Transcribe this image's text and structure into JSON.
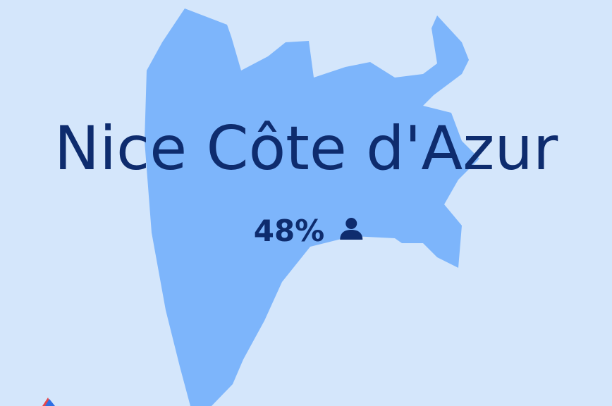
{
  "title": "Nice Côte d'Azur",
  "stat": "48%"
}
